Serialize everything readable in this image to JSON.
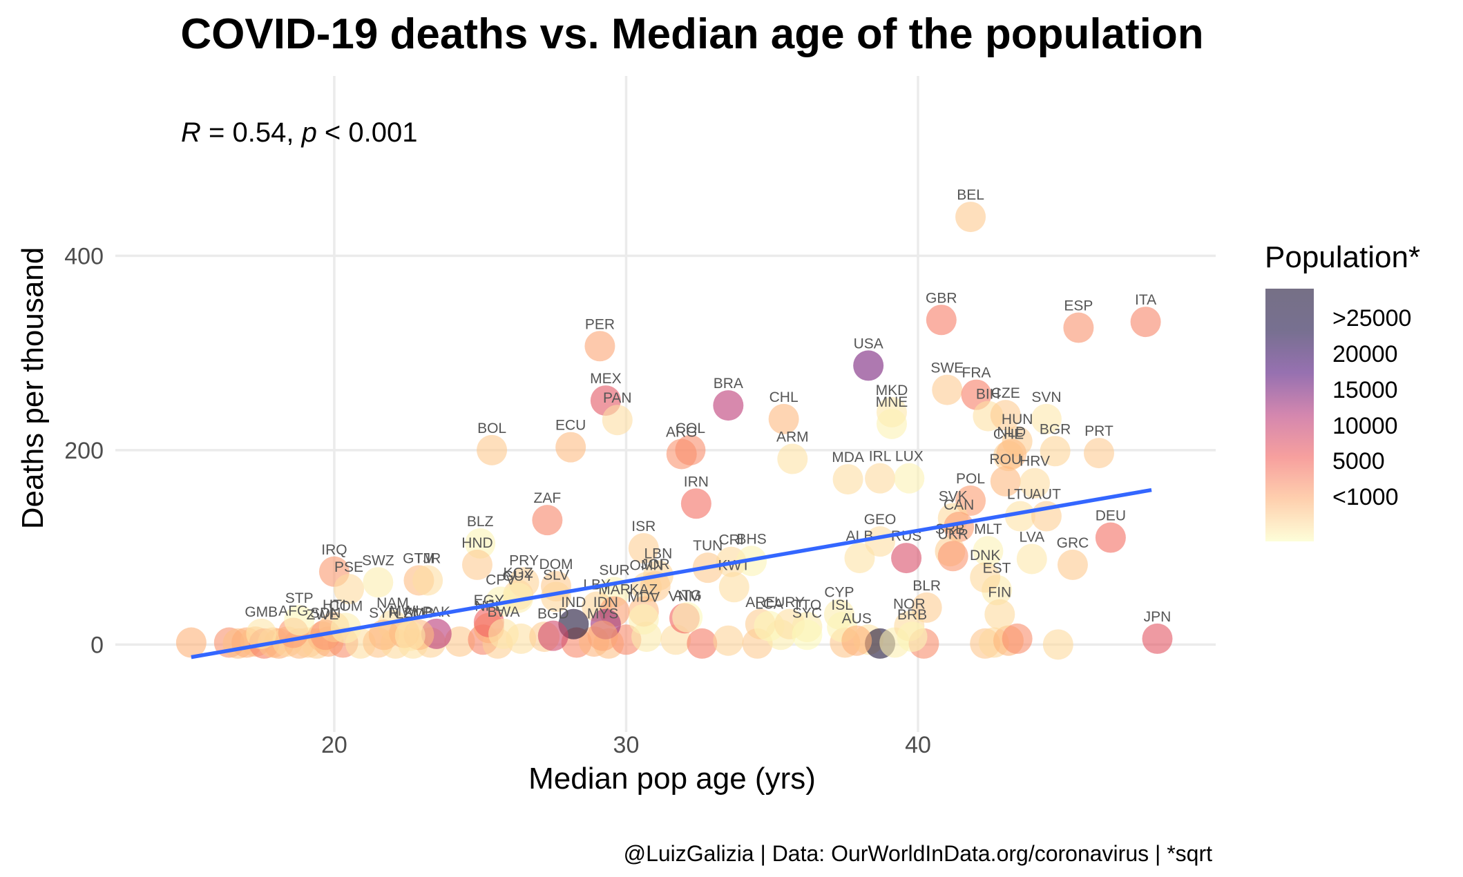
{
  "chart_data": {
    "type": "scatter",
    "title": "COVID-19 deaths vs. Median age of the population",
    "xlabel": "Median pop age (yrs)",
    "ylabel": "Deaths per thousand",
    "xlim": [
      12.5,
      50.2
    ],
    "ylim": [
      -90,
      585
    ],
    "x_ticks": [
      20,
      30,
      40
    ],
    "y_ticks": [
      0,
      200,
      400
    ],
    "stat": {
      "r_symbol": "R",
      "r_value": " = 0.54, ",
      "p_symbol": "p",
      "p_value": " < 0.001"
    },
    "caption": "@LuizGalizia | Data: OurWorldInData.org/coronavirus | *sqrt",
    "trend_line": {
      "x": [
        15.1,
        48.0
      ],
      "y": [
        -13,
        159
      ],
      "color": "#3366ff"
    },
    "grid": true,
    "legend": {
      "title": "Population*",
      "position": "right",
      "breaks": [
        ">25000",
        "20000",
        "15000",
        "10000",
        "5000",
        "<1000"
      ],
      "colors": [
        "#1b1135",
        "#1d1147",
        "#51127c",
        "#b73779",
        "#f1605d",
        "#feb078",
        "#fcfdbf"
      ],
      "opacity": 0.6
    },
    "labeled_points": [
      {
        "code": "BEL",
        "x": 41.8,
        "y": 440,
        "pop": 3400
      },
      {
        "code": "GBR",
        "x": 40.8,
        "y": 334,
        "pop": 8200
      },
      {
        "code": "ESP",
        "x": 45.5,
        "y": 326,
        "pop": 6900
      },
      {
        "code": "ITA",
        "x": 47.8,
        "y": 332,
        "pop": 7700
      },
      {
        "code": "PER",
        "x": 29.1,
        "y": 307,
        "pop": 5700
      },
      {
        "code": "USA",
        "x": 38.3,
        "y": 287,
        "pop": 18100
      },
      {
        "code": "SWE",
        "x": 41.0,
        "y": 262,
        "pop": 3200
      },
      {
        "code": "FRA",
        "x": 42.0,
        "y": 257,
        "pop": 8100
      },
      {
        "code": "MEX",
        "x": 29.3,
        "y": 251,
        "pop": 11200
      },
      {
        "code": "BRA",
        "x": 33.5,
        "y": 246,
        "pop": 14600
      },
      {
        "code": "MKD",
        "x": 39.1,
        "y": 239,
        "pop": 1400
      },
      {
        "code": "PAN",
        "x": 29.7,
        "y": 231,
        "pop": 2000
      },
      {
        "code": "MNE",
        "x": 39.1,
        "y": 227,
        "pop": 800
      },
      {
        "code": "BIH",
        "x": 42.4,
        "y": 235,
        "pop": 1800
      },
      {
        "code": "CZE",
        "x": 43.0,
        "y": 236,
        "pop": 3200
      },
      {
        "code": "SVN",
        "x": 44.4,
        "y": 232,
        "pop": 1400
      },
      {
        "code": "CHL",
        "x": 35.4,
        "y": 232,
        "pop": 4400
      },
      {
        "code": "BOL",
        "x": 25.4,
        "y": 200,
        "pop": 3400
      },
      {
        "code": "ECU",
        "x": 28.1,
        "y": 203,
        "pop": 4200
      },
      {
        "code": "ARG",
        "x": 31.9,
        "y": 196,
        "pop": 6700
      },
      {
        "code": "COL",
        "x": 32.2,
        "y": 200,
        "pop": 7100
      },
      {
        "code": "ARM",
        "x": 35.7,
        "y": 191,
        "pop": 1700
      },
      {
        "code": "HUN",
        "x": 43.4,
        "y": 209,
        "pop": 3100
      },
      {
        "code": "BGR",
        "x": 44.7,
        "y": 199,
        "pop": 2600
      },
      {
        "code": "CHE",
        "x": 43.1,
        "y": 194,
        "pop": 2900
      },
      {
        "code": "NLD",
        "x": 43.2,
        "y": 196,
        "pop": 4200
      },
      {
        "code": "PRT",
        "x": 46.2,
        "y": 197,
        "pop": 3200
      },
      {
        "code": "ROU",
        "x": 43.0,
        "y": 168,
        "pop": 4400
      },
      {
        "code": "HRV",
        "x": 44.0,
        "y": 166,
        "pop": 2000
      },
      {
        "code": "MDA",
        "x": 37.6,
        "y": 170,
        "pop": 2000
      },
      {
        "code": "IRL",
        "x": 38.7,
        "y": 171,
        "pop": 2200
      },
      {
        "code": "LUX",
        "x": 39.7,
        "y": 171,
        "pop": 800
      },
      {
        "code": "IRN",
        "x": 32.4,
        "y": 145,
        "pop": 9100
      },
      {
        "code": "POL",
        "x": 41.8,
        "y": 148,
        "pop": 6200
      },
      {
        "code": "ZAF",
        "x": 27.3,
        "y": 128,
        "pop": 7700
      },
      {
        "code": "LTU",
        "x": 43.5,
        "y": 132,
        "pop": 1700
      },
      {
        "code": "AUT",
        "x": 44.4,
        "y": 132,
        "pop": 3000
      },
      {
        "code": "SVK",
        "x": 41.2,
        "y": 130,
        "pop": 2300
      },
      {
        "code": "CAN",
        "x": 41.4,
        "y": 121,
        "pop": 6200
      },
      {
        "code": "DEU",
        "x": 46.6,
        "y": 110,
        "pop": 9100
      },
      {
        "code": "BLZ",
        "x": 25.0,
        "y": 104,
        "pop": 600
      },
      {
        "code": "ISR",
        "x": 30.6,
        "y": 99,
        "pop": 3000
      },
      {
        "code": "GEO",
        "x": 38.7,
        "y": 106,
        "pop": 2000
      },
      {
        "code": "SRB",
        "x": 41.1,
        "y": 96,
        "pop": 2900
      },
      {
        "code": "MLT",
        "x": 42.4,
        "y": 96,
        "pop": 700
      },
      {
        "code": "UKR",
        "x": 41.2,
        "y": 91,
        "pop": 6600
      },
      {
        "code": "RUS",
        "x": 39.6,
        "y": 89,
        "pop": 12100
      },
      {
        "code": "ALB",
        "x": 38.0,
        "y": 89,
        "pop": 1700
      },
      {
        "code": "HND",
        "x": 24.9,
        "y": 82,
        "pop": 3200
      },
      {
        "code": "TUN",
        "x": 32.8,
        "y": 79,
        "pop": 3400
      },
      {
        "code": "CRI",
        "x": 33.6,
        "y": 85,
        "pop": 2300
      },
      {
        "code": "BHS",
        "x": 34.3,
        "y": 86,
        "pop": 600
      },
      {
        "code": "LVA",
        "x": 43.9,
        "y": 88,
        "pop": 1400
      },
      {
        "code": "GRC",
        "x": 45.3,
        "y": 82,
        "pop": 3300
      },
      {
        "code": "IRQ",
        "x": 20.0,
        "y": 75,
        "pop": 6400
      },
      {
        "code": "PSE",
        "x": 20.5,
        "y": 57,
        "pop": 2200
      },
      {
        "code": "SWZ",
        "x": 21.5,
        "y": 64,
        "pop": 1100
      },
      {
        "code": "GTM",
        "x": 22.9,
        "y": 66,
        "pop": 4200
      },
      {
        "code": "TJR",
        "x": 23.2,
        "y": 66,
        "pop": 2000
      },
      {
        "code": "PRY",
        "x": 26.5,
        "y": 64,
        "pop": 2700
      },
      {
        "code": "DOM",
        "x": 27.6,
        "y": 60,
        "pop": 3300
      },
      {
        "code": "LBN",
        "x": 31.1,
        "y": 71,
        "pop": 2600
      },
      {
        "code": "KGZ",
        "x": 26.3,
        "y": 51,
        "pop": 2500
      },
      {
        "code": "SLV",
        "x": 27.6,
        "y": 49,
        "pop": 2600
      },
      {
        "code": "SUR",
        "x": 29.6,
        "y": 54,
        "pop": 800
      },
      {
        "code": "OMN",
        "x": 30.7,
        "y": 59,
        "pop": 2300
      },
      {
        "code": "JOR",
        "x": 31.0,
        "y": 60,
        "pop": 3200
      },
      {
        "code": "EST",
        "x": 42.7,
        "y": 56,
        "pop": 1200
      },
      {
        "code": "DNK",
        "x": 42.3,
        "y": 69,
        "pop": 2400
      },
      {
        "code": "KWT",
        "x": 33.7,
        "y": 59,
        "pop": 2100
      },
      {
        "code": "CPV",
        "x": 25.7,
        "y": 44,
        "pop": 700
      },
      {
        "code": "GUY",
        "x": 26.3,
        "y": 48,
        "pop": 900
      },
      {
        "code": "LBY",
        "x": 29.0,
        "y": 39,
        "pop": 2600
      },
      {
        "code": "MAR",
        "x": 29.6,
        "y": 34,
        "pop": 6000
      },
      {
        "code": "KAZ",
        "x": 30.6,
        "y": 34,
        "pop": 4300
      },
      {
        "code": "BLR",
        "x": 40.3,
        "y": 38,
        "pop": 3100
      },
      {
        "code": "FIN",
        "x": 42.8,
        "y": 31,
        "pop": 2300
      },
      {
        "code": "ARE",
        "x": 34.6,
        "y": 21,
        "pop": 3100
      },
      {
        "code": "LCA",
        "x": 34.9,
        "y": 19,
        "pop": 400
      },
      {
        "code": "URY",
        "x": 35.6,
        "y": 21,
        "pop": 1900
      },
      {
        "code": "TTO",
        "x": 36.2,
        "y": 18,
        "pop": 1200
      },
      {
        "code": "CYP",
        "x": 37.3,
        "y": 31,
        "pop": 1100
      },
      {
        "code": "ISL",
        "x": 37.4,
        "y": 18,
        "pop": 600
      },
      {
        "code": "SYC",
        "x": 36.2,
        "y": 10,
        "pop": 300
      },
      {
        "code": "AUS",
        "x": 37.9,
        "y": 4,
        "pop": 5000
      },
      {
        "code": "NOR",
        "x": 39.7,
        "y": 19,
        "pop": 2300
      },
      {
        "code": "BRB",
        "x": 39.8,
        "y": 8,
        "pop": 500
      },
      {
        "code": "JPN",
        "x": 48.2,
        "y": 6,
        "pop": 11200
      },
      {
        "code": "IND",
        "x": 28.2,
        "y": 21,
        "pop": 36900
      },
      {
        "code": "BGD",
        "x": 27.5,
        "y": 9,
        "pop": 12800
      },
      {
        "code": "IDN",
        "x": 29.3,
        "y": 21,
        "pop": 16400
      },
      {
        "code": "MYS",
        "x": 29.2,
        "y": 9,
        "pop": 5700
      },
      {
        "code": "PAK",
        "x": 23.5,
        "y": 11,
        "pop": 14800
      },
      {
        "code": "NPL",
        "x": 25.3,
        "y": 17,
        "pop": 5400
      },
      {
        "code": "EGY",
        "x": 25.3,
        "y": 23,
        "pop": 10100
      },
      {
        "code": "BWA",
        "x": 25.8,
        "y": 11,
        "pop": 1500
      },
      {
        "code": "MDV",
        "x": 30.6,
        "y": 26,
        "pop": 700
      },
      {
        "code": "VNM",
        "x": 32.0,
        "y": 27,
        "pop": 9800
      },
      {
        "code": "ATG",
        "x": 32.1,
        "y": 28,
        "pop": 300
      },
      {
        "code": "GMB",
        "x": 17.5,
        "y": 11,
        "pop": 1500
      },
      {
        "code": "AFG",
        "x": 18.6,
        "y": 12,
        "pop": 6300
      },
      {
        "code": "STP",
        "x": 18.8,
        "y": 25,
        "pop": 500
      },
      {
        "code": "ZWE",
        "x": 19.6,
        "y": 8,
        "pop": 3800
      },
      {
        "code": "SDN",
        "x": 19.7,
        "y": 10,
        "pop": 6600
      },
      {
        "code": "HTI",
        "x": 20.0,
        "y": 18,
        "pop": 3400
      },
      {
        "code": "COM",
        "x": 20.4,
        "y": 17,
        "pop": 900
      },
      {
        "code": "NAM",
        "x": 22.0,
        "y": 20,
        "pop": 1600
      },
      {
        "code": "SYR",
        "x": 21.7,
        "y": 10,
        "pop": 4300
      },
      {
        "code": "MWI",
        "x": 22.4,
        "y": 12,
        "pop": 4400
      },
      {
        "code": "ZMB",
        "x": 22.9,
        "y": 10,
        "pop": 4300
      },
      {
        "code": "LSO",
        "x": 22.6,
        "y": 9,
        "pop": 1500
      }
    ],
    "unlabeled_points": [
      {
        "x": 15.1,
        "y": 2,
        "pop": 4900
      },
      {
        "x": 16.4,
        "y": 2,
        "pop": 6900
      },
      {
        "x": 16.7,
        "y": 1,
        "pop": 4000
      },
      {
        "x": 17.0,
        "y": 2,
        "pop": 5100
      },
      {
        "x": 17.3,
        "y": 3,
        "pop": 4200
      },
      {
        "x": 17.6,
        "y": 1,
        "pop": 8000
      },
      {
        "x": 17.9,
        "y": 2,
        "pop": 3800
      },
      {
        "x": 18.1,
        "y": 1,
        "pop": 5000
      },
      {
        "x": 18.4,
        "y": 3,
        "pop": 2500
      },
      {
        "x": 18.8,
        "y": 1,
        "pop": 4300
      },
      {
        "x": 19.1,
        "y": 2,
        "pop": 3200
      },
      {
        "x": 19.4,
        "y": 1,
        "pop": 2900
      },
      {
        "x": 19.8,
        "y": 3,
        "pop": 5300
      },
      {
        "x": 20.3,
        "y": 2,
        "pop": 7000
      },
      {
        "x": 20.9,
        "y": 1,
        "pop": 1900
      },
      {
        "x": 21.5,
        "y": 2,
        "pop": 3600
      },
      {
        "x": 22.1,
        "y": 1,
        "pop": 2300
      },
      {
        "x": 22.7,
        "y": 1,
        "pop": 1700
      },
      {
        "x": 23.3,
        "y": 2,
        "pop": 2700
      },
      {
        "x": 24.3,
        "y": 3,
        "pop": 3400
      },
      {
        "x": 25.1,
        "y": 5,
        "pop": 7700
      },
      {
        "x": 25.6,
        "y": 1,
        "pop": 2900
      },
      {
        "x": 26.4,
        "y": 6,
        "pop": 1800
      },
      {
        "x": 27.2,
        "y": 8,
        "pop": 3100
      },
      {
        "x": 28.3,
        "y": 2,
        "pop": 7300
      },
      {
        "x": 28.9,
        "y": 3,
        "pop": 4600
      },
      {
        "x": 29.4,
        "y": 1,
        "pop": 3800
      },
      {
        "x": 30.0,
        "y": 5,
        "pop": 7400
      },
      {
        "x": 30.7,
        "y": 8,
        "pop": 1200
      },
      {
        "x": 31.7,
        "y": 5,
        "pop": 2000
      },
      {
        "x": 32.6,
        "y": 1,
        "pop": 8300
      },
      {
        "x": 33.5,
        "y": 4,
        "pop": 2700
      },
      {
        "x": 34.5,
        "y": 1,
        "pop": 3200
      },
      {
        "x": 35.3,
        "y": 10,
        "pop": 1000
      },
      {
        "x": 37.5,
        "y": 2,
        "pop": 3600
      },
      {
        "x": 38.3,
        "y": 5,
        "pop": 1600
      },
      {
        "x": 38.7,
        "y": 1,
        "pop": 37500
      },
      {
        "x": 39.2,
        "y": 2,
        "pop": 1000
      },
      {
        "x": 40.2,
        "y": 1,
        "pop": 7100
      },
      {
        "x": 42.3,
        "y": 1,
        "pop": 3500
      },
      {
        "x": 42.6,
        "y": 2,
        "pop": 2400
      },
      {
        "x": 43.1,
        "y": 4,
        "pop": 4700
      },
      {
        "x": 43.4,
        "y": 6,
        "pop": 7200
      },
      {
        "x": 44.8,
        "y": 0,
        "pop": 2300
      }
    ]
  }
}
